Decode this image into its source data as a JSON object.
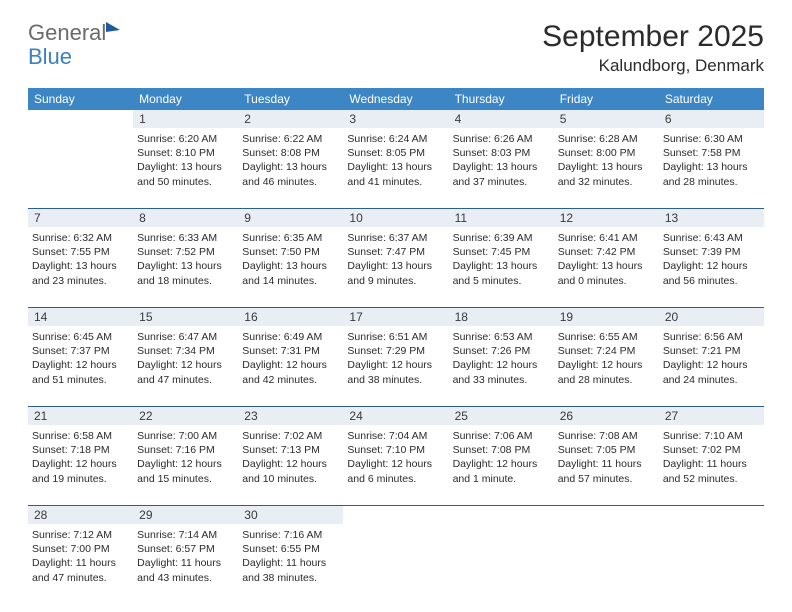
{
  "logo": {
    "word1": "General",
    "word2": "Blue"
  },
  "title": "September 2025",
  "location": "Kalundborg, Denmark",
  "header_bg": "#3d86c6",
  "days_of_week": [
    "Sunday",
    "Monday",
    "Tuesday",
    "Wednesday",
    "Thursday",
    "Friday",
    "Saturday"
  ],
  "start_weekday_index": 1,
  "days": [
    {
      "n": 1,
      "sunrise": "6:20 AM",
      "sunset": "8:10 PM",
      "daylight": "13 hours and 50 minutes."
    },
    {
      "n": 2,
      "sunrise": "6:22 AM",
      "sunset": "8:08 PM",
      "daylight": "13 hours and 46 minutes."
    },
    {
      "n": 3,
      "sunrise": "6:24 AM",
      "sunset": "8:05 PM",
      "daylight": "13 hours and 41 minutes."
    },
    {
      "n": 4,
      "sunrise": "6:26 AM",
      "sunset": "8:03 PM",
      "daylight": "13 hours and 37 minutes."
    },
    {
      "n": 5,
      "sunrise": "6:28 AM",
      "sunset": "8:00 PM",
      "daylight": "13 hours and 32 minutes."
    },
    {
      "n": 6,
      "sunrise": "6:30 AM",
      "sunset": "7:58 PM",
      "daylight": "13 hours and 28 minutes."
    },
    {
      "n": 7,
      "sunrise": "6:32 AM",
      "sunset": "7:55 PM",
      "daylight": "13 hours and 23 minutes."
    },
    {
      "n": 8,
      "sunrise": "6:33 AM",
      "sunset": "7:52 PM",
      "daylight": "13 hours and 18 minutes."
    },
    {
      "n": 9,
      "sunrise": "6:35 AM",
      "sunset": "7:50 PM",
      "daylight": "13 hours and 14 minutes."
    },
    {
      "n": 10,
      "sunrise": "6:37 AM",
      "sunset": "7:47 PM",
      "daylight": "13 hours and 9 minutes."
    },
    {
      "n": 11,
      "sunrise": "6:39 AM",
      "sunset": "7:45 PM",
      "daylight": "13 hours and 5 minutes."
    },
    {
      "n": 12,
      "sunrise": "6:41 AM",
      "sunset": "7:42 PM",
      "daylight": "13 hours and 0 minutes."
    },
    {
      "n": 13,
      "sunrise": "6:43 AM",
      "sunset": "7:39 PM",
      "daylight": "12 hours and 56 minutes."
    },
    {
      "n": 14,
      "sunrise": "6:45 AM",
      "sunset": "7:37 PM",
      "daylight": "12 hours and 51 minutes."
    },
    {
      "n": 15,
      "sunrise": "6:47 AM",
      "sunset": "7:34 PM",
      "daylight": "12 hours and 47 minutes."
    },
    {
      "n": 16,
      "sunrise": "6:49 AM",
      "sunset": "7:31 PM",
      "daylight": "12 hours and 42 minutes."
    },
    {
      "n": 17,
      "sunrise": "6:51 AM",
      "sunset": "7:29 PM",
      "daylight": "12 hours and 38 minutes."
    },
    {
      "n": 18,
      "sunrise": "6:53 AM",
      "sunset": "7:26 PM",
      "daylight": "12 hours and 33 minutes."
    },
    {
      "n": 19,
      "sunrise": "6:55 AM",
      "sunset": "7:24 PM",
      "daylight": "12 hours and 28 minutes."
    },
    {
      "n": 20,
      "sunrise": "6:56 AM",
      "sunset": "7:21 PM",
      "daylight": "12 hours and 24 minutes."
    },
    {
      "n": 21,
      "sunrise": "6:58 AM",
      "sunset": "7:18 PM",
      "daylight": "12 hours and 19 minutes."
    },
    {
      "n": 22,
      "sunrise": "7:00 AM",
      "sunset": "7:16 PM",
      "daylight": "12 hours and 15 minutes."
    },
    {
      "n": 23,
      "sunrise": "7:02 AM",
      "sunset": "7:13 PM",
      "daylight": "12 hours and 10 minutes."
    },
    {
      "n": 24,
      "sunrise": "7:04 AM",
      "sunset": "7:10 PM",
      "daylight": "12 hours and 6 minutes."
    },
    {
      "n": 25,
      "sunrise": "7:06 AM",
      "sunset": "7:08 PM",
      "daylight": "12 hours and 1 minute."
    },
    {
      "n": 26,
      "sunrise": "7:08 AM",
      "sunset": "7:05 PM",
      "daylight": "11 hours and 57 minutes."
    },
    {
      "n": 27,
      "sunrise": "7:10 AM",
      "sunset": "7:02 PM",
      "daylight": "11 hours and 52 minutes."
    },
    {
      "n": 28,
      "sunrise": "7:12 AM",
      "sunset": "7:00 PM",
      "daylight": "11 hours and 47 minutes."
    },
    {
      "n": 29,
      "sunrise": "7:14 AM",
      "sunset": "6:57 PM",
      "daylight": "11 hours and 43 minutes."
    },
    {
      "n": 30,
      "sunrise": "7:16 AM",
      "sunset": "6:55 PM",
      "daylight": "11 hours and 38 minutes."
    }
  ],
  "labels": {
    "sunrise": "Sunrise:",
    "sunset": "Sunset:",
    "daylight": "Daylight:"
  }
}
